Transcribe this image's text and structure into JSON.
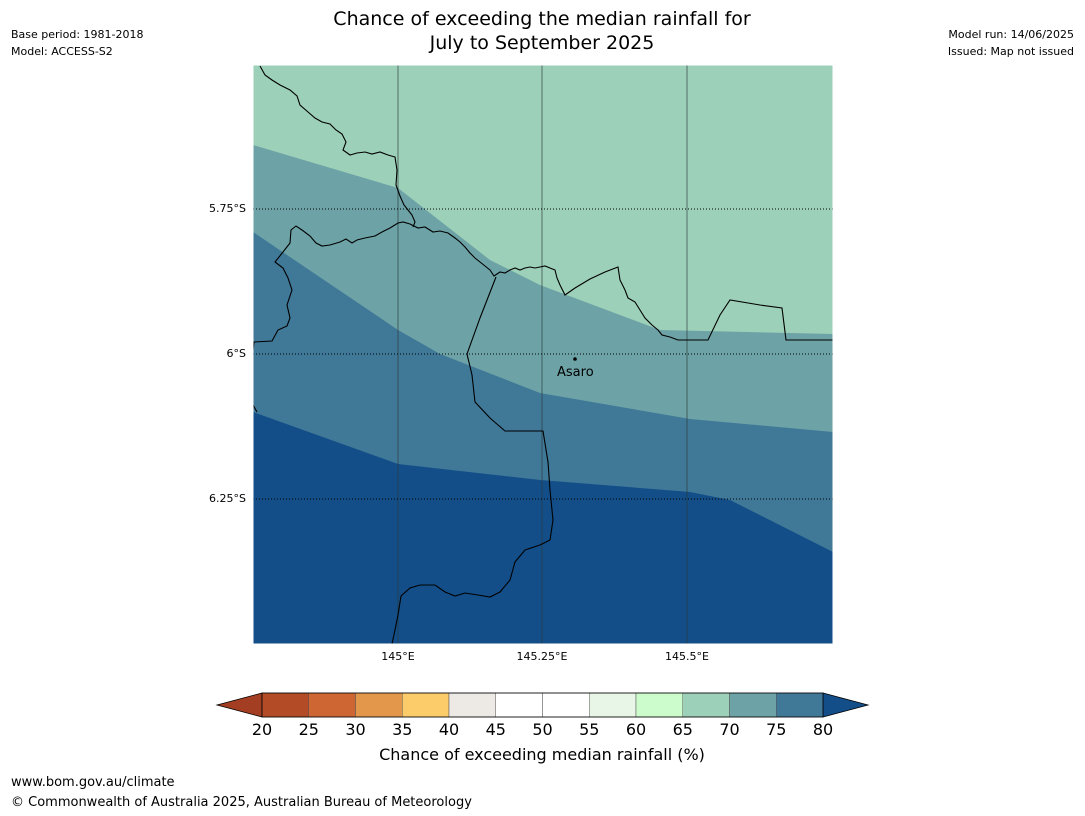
{
  "title": {
    "line1": "Chance of exceeding the median rainfall for",
    "line2": "July to September 2025"
  },
  "meta_left": {
    "base_period": "Base period: 1981-2018",
    "model": "Model: ACCESS-S2"
  },
  "meta_right": {
    "model_run": "Model run: 14/06/2025",
    "issued": "Issued: Map not issued"
  },
  "map": {
    "lat_labels": [
      "5.75°S",
      "6°S",
      "6.25°S"
    ],
    "lon_labels": [
      "145°E",
      "145.25°E",
      "145.5°E"
    ],
    "place": {
      "name": "Asaro"
    },
    "colors": {
      "band_65_70": "#9dd0b9",
      "band_70_75": "#6da3a6",
      "band_75_80": "#407898",
      "band_80_plus": "#134e88"
    }
  },
  "colorbar": {
    "label": "Chance of exceeding median rainfall (%)",
    "ticks": [
      "20",
      "25",
      "30",
      "35",
      "40",
      "45",
      "50",
      "55",
      "60",
      "65",
      "70",
      "75",
      "80"
    ],
    "colors": [
      "#cd6632",
      "#e3974a",
      "#fdcc6a",
      "#ede9e5",
      "#ffffff",
      "#ffffff",
      "#e8f6e8",
      "#ccfccc",
      "#9dd0b9",
      "#6da3a6",
      "#407898"
    ],
    "under_color": "#a33e22",
    "over_color": "#134e88",
    "first_bin_color": "#b24b26"
  },
  "footer": {
    "url": "www.bom.gov.au/climate",
    "copyright": "© Commonwealth of Australia 2025, Australian Bureau of Meteorology"
  }
}
